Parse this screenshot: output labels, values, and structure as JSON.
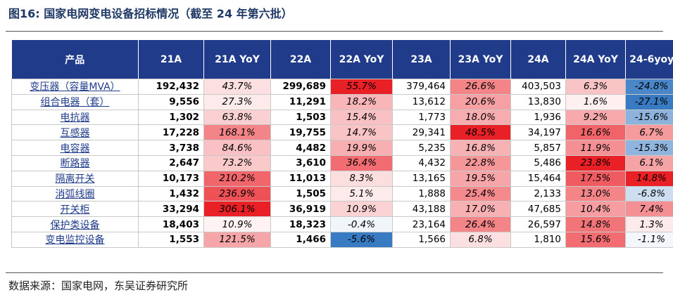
{
  "title": "图16:  国家电网变电设备招标情况（截至 24 年第六批）",
  "source": "数据来源：国家电网，东吴证券研究所",
  "columns": [
    "产品",
    "21A",
    "21A YoY",
    "22A",
    "22A YoY",
    "23A",
    "23A YoY",
    "24A",
    "24A YoY",
    "24-6yoy"
  ],
  "rows": [
    {
      "name": "变压器（容量MVA）",
      "v21": "192,432",
      "y21": "43.7%",
      "v22": "299,689",
      "y22": "55.7%",
      "v23": "379,464",
      "y23": "26.6%",
      "v24": "403,503",
      "y24": "6.3%",
      "y246": "-24.8%"
    },
    {
      "name": "组合电器（套）",
      "v21": "9,556",
      "y21": "27.3%",
      "v22": "11,291",
      "y22": "18.2%",
      "v23": "13,612",
      "y23": "20.6%",
      "v24": "13,830",
      "y24": "1.6%",
      "y246": "-27.1%"
    },
    {
      "name": "电抗器",
      "v21": "1,302",
      "y21": "63.8%",
      "v22": "1,503",
      "y22": "15.4%",
      "v23": "1,773",
      "y23": "18.0%",
      "v24": "1,936",
      "y24": "9.2%",
      "y246": "-15.6%"
    },
    {
      "name": "互感器",
      "v21": "17,228",
      "y21": "168.1%",
      "v22": "19,755",
      "y22": "14.7%",
      "v23": "29,341",
      "y23": "48.5%",
      "v24": "34,197",
      "y24": "16.6%",
      "y246": "6.7%"
    },
    {
      "name": "电容器",
      "v21": "3,738",
      "y21": "84.6%",
      "v22": "4,482",
      "y22": "19.9%",
      "v23": "5,235",
      "y23": "16.8%",
      "v24": "5,857",
      "y24": "11.9%",
      "y246": "-15.3%"
    },
    {
      "name": "断路器",
      "v21": "2,647",
      "y21": "73.2%",
      "v22": "3,610",
      "y22": "36.4%",
      "v23": "4,432",
      "y23": "22.8%",
      "v24": "5,486",
      "y24": "23.8%",
      "y246": "6.1%"
    },
    {
      "name": "隔离开关",
      "v21": "10,173",
      "y21": "210.2%",
      "v22": "11,013",
      "y22": "8.3%",
      "v23": "13,165",
      "y23": "19.5%",
      "v24": "15,464",
      "y24": "17.5%",
      "y246": "14.8%"
    },
    {
      "name": "消弧线圈",
      "v21": "1,432",
      "y21": "236.9%",
      "v22": "1,505",
      "y22": "5.1%",
      "v23": "1,888",
      "y23": "25.4%",
      "v24": "2,133",
      "y24": "13.0%",
      "y246": "-6.8%"
    },
    {
      "name": "开关柜",
      "v21": "33,294",
      "y21": "306.1%",
      "v22": "36,919",
      "y22": "10.9%",
      "v23": "43,188",
      "y23": "17.0%",
      "v24": "47,685",
      "y24": "10.4%",
      "y246": "7.4%"
    },
    {
      "name": "保护类设备",
      "v21": "18,403",
      "y21": "10.9%",
      "v22": "18,323",
      "y22": "-0.4%",
      "v23": "23,164",
      "y23": "26.4%",
      "v24": "26,597",
      "y24": "14.8%",
      "y246": "1.3%"
    },
    {
      "name": "变电监控设备",
      "v21": "1,553",
      "y21": "121.5%",
      "v22": "1,466",
      "y22": "-5.6%",
      "v23": "1,566",
      "y23": "6.8%",
      "v24": "1,810",
      "y24": "15.6%",
      "y246": "-1.1%"
    }
  ],
  "colors": {
    "header_bg": "#1f3b8a",
    "title": "#1f3864",
    "pos_max": "#e8141b",
    "neg_max": "#2f74c0"
  }
}
